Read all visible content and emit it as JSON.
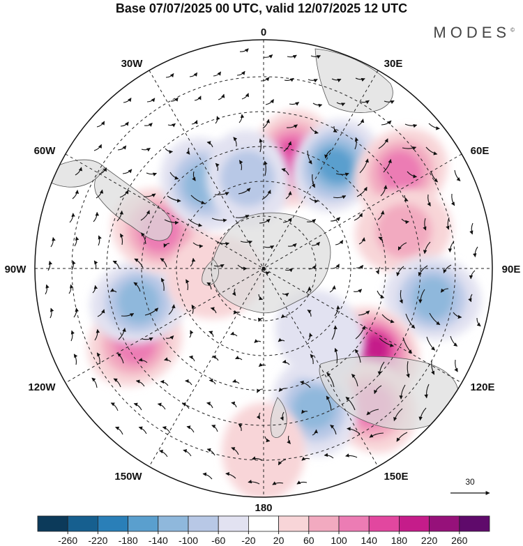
{
  "title": "Base 07/07/2025 00 UTC, valid 12/07/2025 12 UTC",
  "brand": "MODES",
  "brand_mark": "©",
  "longitude_labels": {
    "lon_0": "0",
    "lon_30e": "30E",
    "lon_60e": "60E",
    "lon_90e": "90E",
    "lon_120e": "120E",
    "lon_150e": "150E",
    "lon_180": "180",
    "lon_150w": "150W",
    "lon_120w": "120W",
    "lon_90w": "90W",
    "lon_60w": "60W",
    "lon_30w": "30W"
  },
  "reference_vector": {
    "value": "30"
  },
  "colorbar": {
    "ticks": [
      "-260",
      "-220",
      "-180",
      "-140",
      "-100",
      "-60",
      "-20",
      "20",
      "60",
      "100",
      "140",
      "180",
      "220",
      "260"
    ],
    "colors": [
      "#0c3a5a",
      "#165f8f",
      "#2a7fb8",
      "#5a9fce",
      "#8fb8dc",
      "#b8c8e6",
      "#e2e2f1",
      "#ffffff",
      "#f8d5d8",
      "#f2aac0",
      "#ec7cb4",
      "#e2479f",
      "#c51c8a",
      "#96117a",
      "#5f0a6b"
    ]
  },
  "anomaly_blobs": [
    {
      "lon": 15,
      "colat": 30,
      "value": 150
    },
    {
      "lon": 35,
      "colat": 33,
      "value": -170
    },
    {
      "lon": 55,
      "colat": 44,
      "value": 110
    },
    {
      "lon": 75,
      "colat": 38,
      "value": 80
    },
    {
      "lon": 100,
      "colat": 45,
      "value": -120
    },
    {
      "lon": 127,
      "colat": 36,
      "value": 190
    },
    {
      "lon": 142,
      "colat": 46,
      "value": 110
    },
    {
      "lon": 160,
      "colat": 39,
      "value": -110
    },
    {
      "lon": 180,
      "colat": 48,
      "value": 60
    },
    {
      "lon": -120,
      "colat": 39,
      "value": 110
    },
    {
      "lon": -105,
      "colat": 34,
      "value": -130
    },
    {
      "lon": -70,
      "colat": 29,
      "value": 120
    },
    {
      "lon": -35,
      "colat": 27,
      "value": -110
    },
    {
      "lon": -10,
      "colat": 24,
      "value": -80
    },
    {
      "lon": 140,
      "colat": 23,
      "value": -60
    },
    {
      "lon": -100,
      "colat": 13,
      "value": 60
    }
  ]
}
